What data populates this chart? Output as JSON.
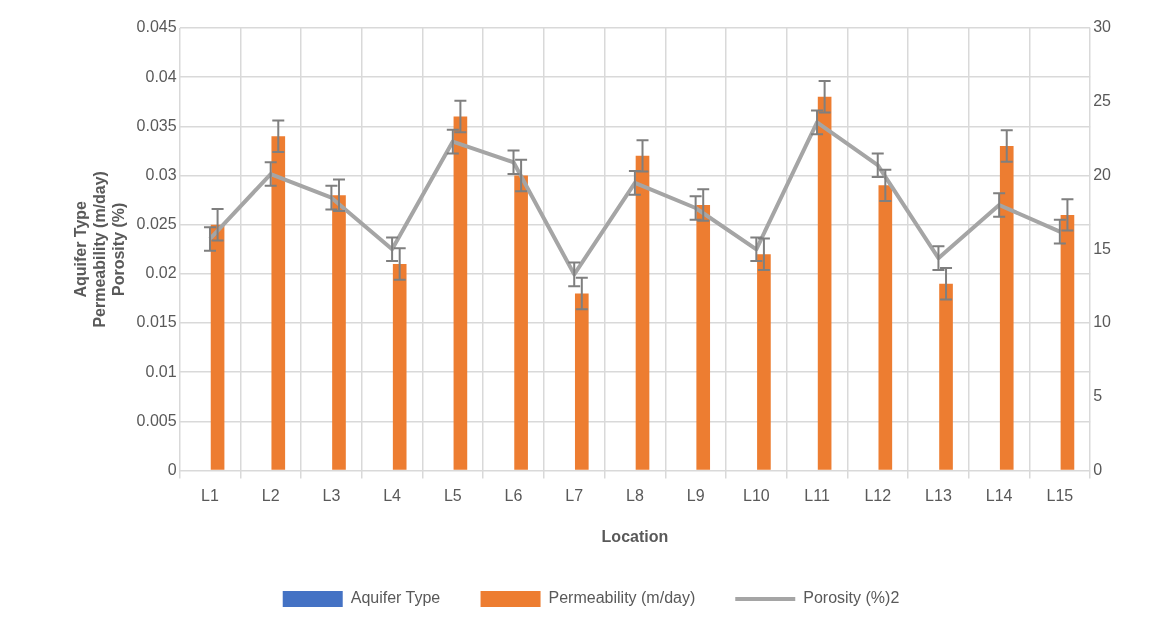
{
  "chart_data": {
    "type": "bar",
    "xlabel": "Location",
    "ylabel": "Aquifer Type\nPermeability (m/day)\nPorosity (%)",
    "categories": [
      "L1",
      "L2",
      "L3",
      "L4",
      "L5",
      "L6",
      "L7",
      "L8",
      "L9",
      "L10",
      "L11",
      "L12",
      "L13",
      "L14",
      "L15"
    ],
    "series": [
      {
        "name": "Aquifer Type",
        "color": "#4472c4",
        "values": [
          0,
          0,
          0,
          0,
          0,
          0,
          0,
          0,
          0,
          0,
          0,
          0,
          0,
          0,
          0
        ]
      },
      {
        "name": "Permeability (m/day)",
        "color": "#ed7d31",
        "values": [
          0.025,
          0.034,
          0.028,
          0.021,
          0.036,
          0.03,
          0.018,
          0.032,
          0.027,
          0.022,
          0.038,
          0.029,
          0.019,
          0.033,
          0.026
        ],
        "errors": [
          0.0016,
          0.0016,
          0.0016,
          0.0016,
          0.0016,
          0.0016,
          0.0016,
          0.0016,
          0.0016,
          0.0016,
          0.0016,
          0.0016,
          0.0016,
          0.0016,
          0.0016
        ]
      },
      {
        "name": "Porosity (%)2",
        "type": "line",
        "axis": "y2",
        "color": "#a5a5a5",
        "marker": "none",
        "values": [
          15.7,
          20.1,
          18.5,
          15.0,
          22.3,
          20.9,
          13.3,
          19.5,
          17.8,
          15.0,
          23.6,
          20.7,
          14.4,
          18.0,
          16.2
        ],
        "errors": [
          0.8,
          0.8,
          0.8,
          0.8,
          0.8,
          0.8,
          0.8,
          0.8,
          0.8,
          0.8,
          0.8,
          0.8,
          0.8,
          0.8,
          0.8
        ]
      }
    ],
    "ylim": [
      0,
      0.045
    ],
    "yticks": [
      0,
      0.005,
      0.01,
      0.015,
      0.02,
      0.025,
      0.03,
      0.035,
      0.04,
      0.045
    ],
    "y2lim": [
      0,
      30
    ],
    "y2ticks": [
      0,
      5,
      10,
      15,
      20,
      25,
      30
    ],
    "grid": true,
    "legend": "bottom"
  }
}
